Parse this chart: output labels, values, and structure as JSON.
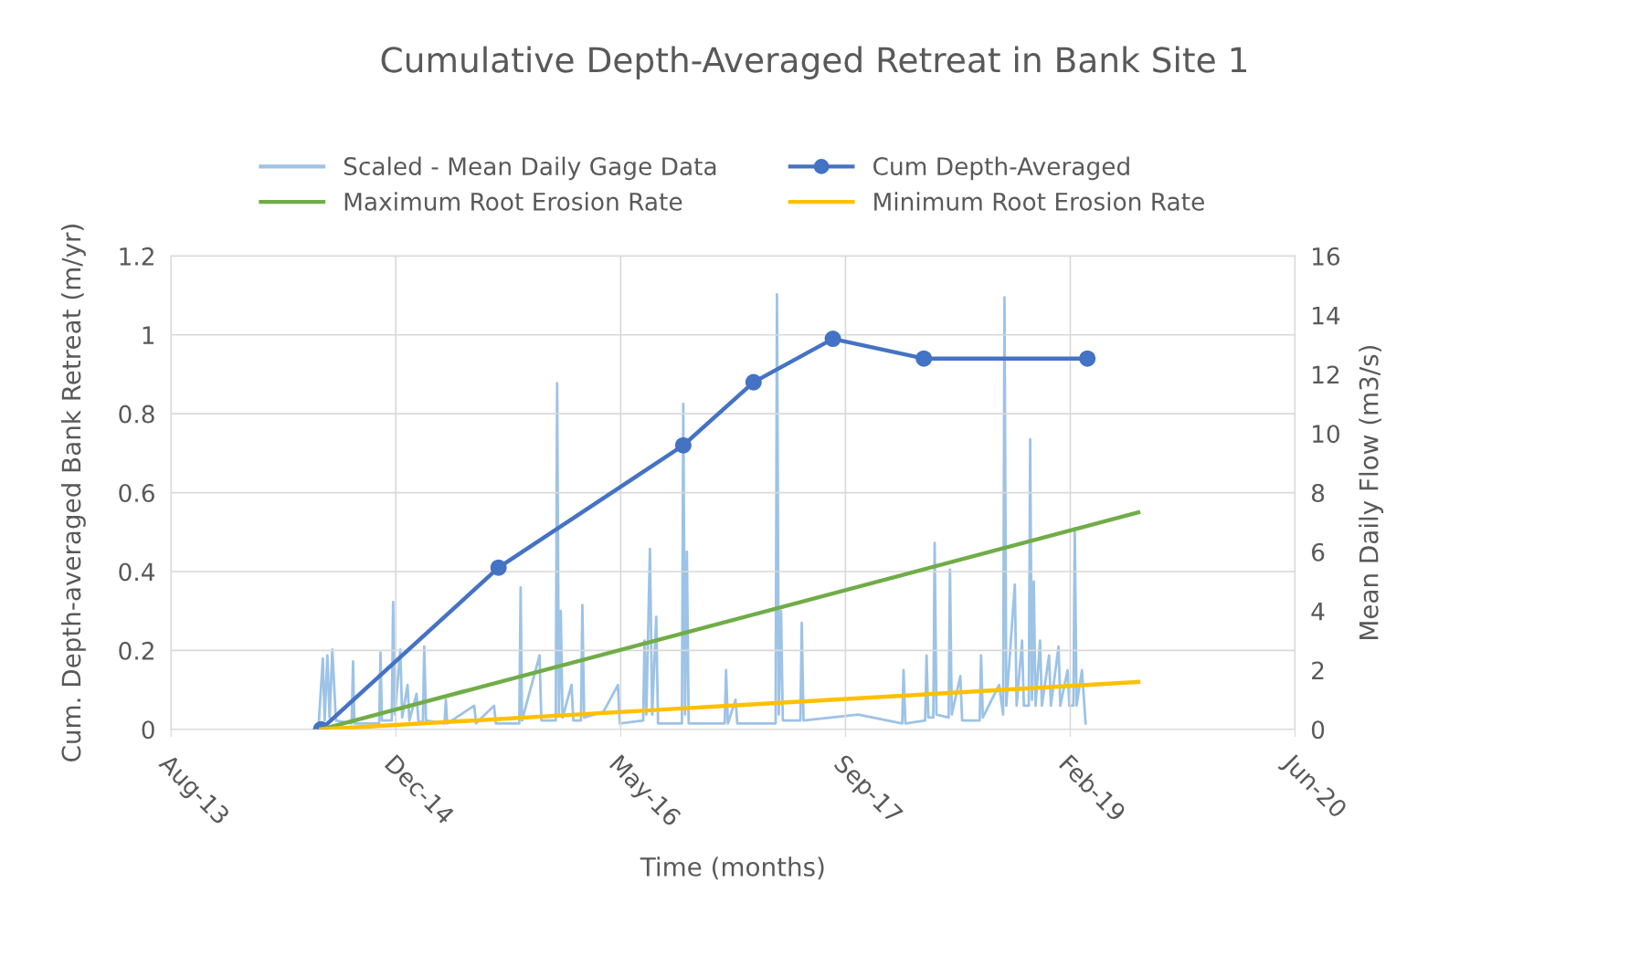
{
  "chart_data": {
    "type": "line",
    "title": "Cumulative Depth-Averaged Retreat in Bank Site 1",
    "xlabel": "Time (months)",
    "ylabel": "Cum. Depth-averaged Bank Retreat (m/yr)",
    "y2label": "Mean Daily Flow (m3/s)",
    "xlim": [
      "2013-08-15",
      "2020-06-14"
    ],
    "xticks": [
      {
        "value": "2013-08-15",
        "label": "Aug-13"
      },
      {
        "value": "2014-12-27",
        "label": "Dec-14"
      },
      {
        "value": "2016-05-09",
        "label": "May-16"
      },
      {
        "value": "2017-09-20",
        "label": "Sep-17"
      },
      {
        "value": "2019-02-01",
        "label": "Feb-19"
      },
      {
        "value": "2020-06-14",
        "label": "Jun-20"
      }
    ],
    "ylim": [
      0,
      1.2
    ],
    "yticks": [
      0,
      0.2,
      0.4,
      0.6,
      0.8,
      1,
      1.2
    ],
    "y2lim": [
      0,
      16
    ],
    "y2ticks": [
      0,
      2,
      4,
      6,
      8,
      10,
      12,
      14,
      16
    ],
    "grid": true,
    "legend": "top",
    "series": [
      {
        "name": "Scaled - Mean Daily Gage Data",
        "color": "#9dc3e6",
        "axis": "y2",
        "marker": "none",
        "x": [
          "2014-07-08",
          "2014-07-18",
          "2014-07-22",
          "2014-07-28",
          "2014-08-02",
          "2014-08-08",
          "2014-08-16",
          "2014-09-20",
          "2014-09-23",
          "2014-09-26",
          "2014-11-20",
          "2014-11-23",
          "2014-11-26",
          "2014-12-18",
          "2014-12-21",
          "2014-12-25",
          "2015-01-06",
          "2015-01-10",
          "2015-01-22",
          "2015-01-26",
          "2015-02-11",
          "2015-02-15",
          "2015-02-25",
          "2015-02-28",
          "2015-03-04",
          "2015-04-14",
          "2015-04-17",
          "2015-04-20",
          "2015-06-19",
          "2015-06-23",
          "2015-08-02",
          "2015-08-06",
          "2015-09-27",
          "2015-09-30",
          "2015-10-03",
          "2015-11-11",
          "2015-11-15",
          "2015-12-17",
          "2015-12-20",
          "2015-12-24",
          "2015-12-28",
          "2016-01-01",
          "2016-01-21",
          "2016-01-25",
          "2016-02-11",
          "2016-02-14",
          "2016-02-18",
          "2016-04-01",
          "2016-05-03",
          "2016-05-07",
          "2016-06-28",
          "2016-07-01",
          "2016-07-05",
          "2016-07-13",
          "2016-07-18",
          "2016-07-27",
          "2016-07-31",
          "2016-09-22",
          "2016-09-25",
          "2016-09-29",
          "2016-10-03",
          "2016-10-07",
          "2016-12-26",
          "2016-12-29",
          "2017-01-02",
          "2017-01-19",
          "2017-01-23",
          "2017-04-18",
          "2017-04-21",
          "2017-04-25",
          "2017-04-30",
          "2017-05-04",
          "2017-06-12",
          "2017-06-15",
          "2017-06-19",
          "2017-10-18",
          "2018-01-24",
          "2018-01-27",
          "2018-01-31",
          "2018-03-16",
          "2018-03-19",
          "2018-03-23",
          "2018-04-03",
          "2018-04-06",
          "2018-04-10",
          "2018-05-07",
          "2018-05-10",
          "2018-05-14",
          "2018-06-02",
          "2018-06-06",
          "2018-07-15",
          "2018-07-18",
          "2018-07-22",
          "2018-08-27",
          "2018-09-05",
          "2018-09-08",
          "2018-09-12",
          "2018-10-01",
          "2018-10-05",
          "2018-10-17",
          "2018-10-21",
          "2018-11-01",
          "2018-11-04",
          "2018-11-08",
          "2018-11-12",
          "2018-11-16",
          "2018-11-26",
          "2018-11-30",
          "2018-12-16",
          "2018-12-20",
          "2019-01-06",
          "2019-01-10",
          "2019-01-26",
          "2019-01-30",
          "2019-02-08",
          "2019-02-11",
          "2019-02-15",
          "2019-02-27",
          "2019-03-07"
        ],
        "values": [
          0,
          2.4,
          0.3,
          2.5,
          0.4,
          2.7,
          0.3,
          0.2,
          2.3,
          0.2,
          0.2,
          2.6,
          0.3,
          0.3,
          4.3,
          0.5,
          2.7,
          0.4,
          1.5,
          0.3,
          1.2,
          0.3,
          0.2,
          2.8,
          0.3,
          0.2,
          1.0,
          0.2,
          0.8,
          0.2,
          0.8,
          0.2,
          0.2,
          4.8,
          0.3,
          2.5,
          0.3,
          0.3,
          11.7,
          0.5,
          4.0,
          0.4,
          1.5,
          0.3,
          0.3,
          4.2,
          0.4,
          0.6,
          1.5,
          0.2,
          0.3,
          3.0,
          0.5,
          6.1,
          0.5,
          3.8,
          0.2,
          0.2,
          11.0,
          0.5,
          6.0,
          0.2,
          0.2,
          2.0,
          0.2,
          1.0,
          0.2,
          0.2,
          14.7,
          0.5,
          4.0,
          0.3,
          0.3,
          3.6,
          0.3,
          0.5,
          0.2,
          2.0,
          0.2,
          0.3,
          2.5,
          0.4,
          0.4,
          6.3,
          0.5,
          0.4,
          5.4,
          0.5,
          1.8,
          0.3,
          0.3,
          2.5,
          0.4,
          1.5,
          0.5,
          14.6,
          0.8,
          4.9,
          0.8,
          3.0,
          0.8,
          0.8,
          9.8,
          1.0,
          5.0,
          0.8,
          3.0,
          0.8,
          2.5,
          0.8,
          2.8,
          0.8,
          2.0,
          0.8,
          0.8,
          6.8,
          0.8,
          2.0,
          0.2
        ]
      },
      {
        "name": "Cum Depth-Averaged",
        "color": "#4472c4",
        "marker": "circle",
        "x": [
          "2014-07-14",
          "2015-08-12",
          "2016-09-25",
          "2017-02-28",
          "2017-08-23",
          "2018-03-13",
          "2019-03-11"
        ],
        "values": [
          0,
          0.41,
          0.72,
          0.88,
          0.99,
          0.94,
          0.94
        ]
      },
      {
        "name": "Maximum Root Erosion Rate",
        "color": "#70ad47",
        "marker": "none",
        "x": [
          "2014-07-14",
          "2019-07-02"
        ],
        "values": [
          0,
          0.55
        ]
      },
      {
        "name": "Minimum Root Erosion Rate",
        "color": "#ffc000",
        "marker": "none",
        "x": [
          "2014-07-14",
          "2019-07-02"
        ],
        "values": [
          0,
          0.12
        ]
      }
    ]
  }
}
